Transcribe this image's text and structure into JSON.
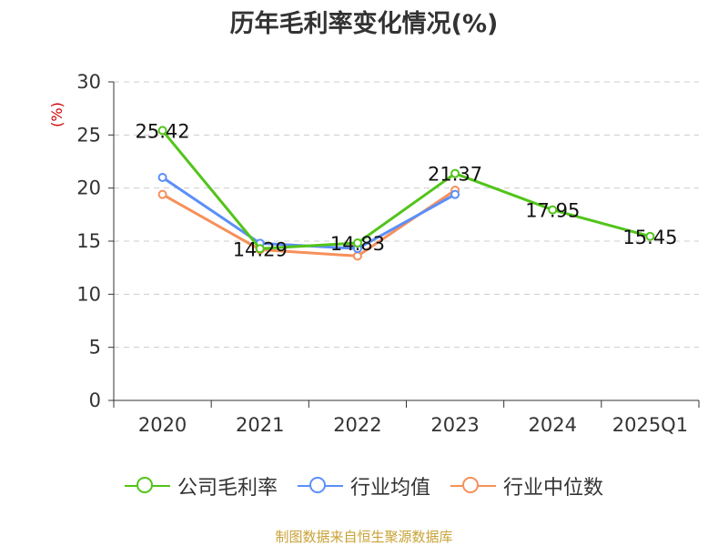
{
  "chart_data": {
    "type": "line",
    "title": "历年毛利率变化情况(%)",
    "ylabel": "(%)",
    "xlabel": "",
    "categories": [
      "2020",
      "2021",
      "2022",
      "2023",
      "2024",
      "2025Q1"
    ],
    "ylim": [
      0,
      30
    ],
    "yticks": [
      0,
      5,
      10,
      15,
      20,
      25,
      30
    ],
    "grid": true,
    "legend_position": "bottom",
    "series": [
      {
        "name": "公司毛利率",
        "color": "#52c41a",
        "values": [
          25.42,
          14.29,
          14.83,
          21.37,
          17.95,
          15.45
        ],
        "labels": [
          "25.42",
          "14.29",
          "14.83",
          "21.37",
          "17.95",
          "15.45"
        ]
      },
      {
        "name": "行业均值",
        "color": "#5b8ff9",
        "values": [
          21.0,
          14.8,
          14.3,
          19.4,
          null,
          null
        ]
      },
      {
        "name": "行业中位数",
        "color": "#f6905a",
        "values": [
          19.4,
          14.2,
          13.6,
          19.8,
          null,
          null
        ]
      }
    ]
  },
  "source": "制图数据来自恒生聚源数据库"
}
